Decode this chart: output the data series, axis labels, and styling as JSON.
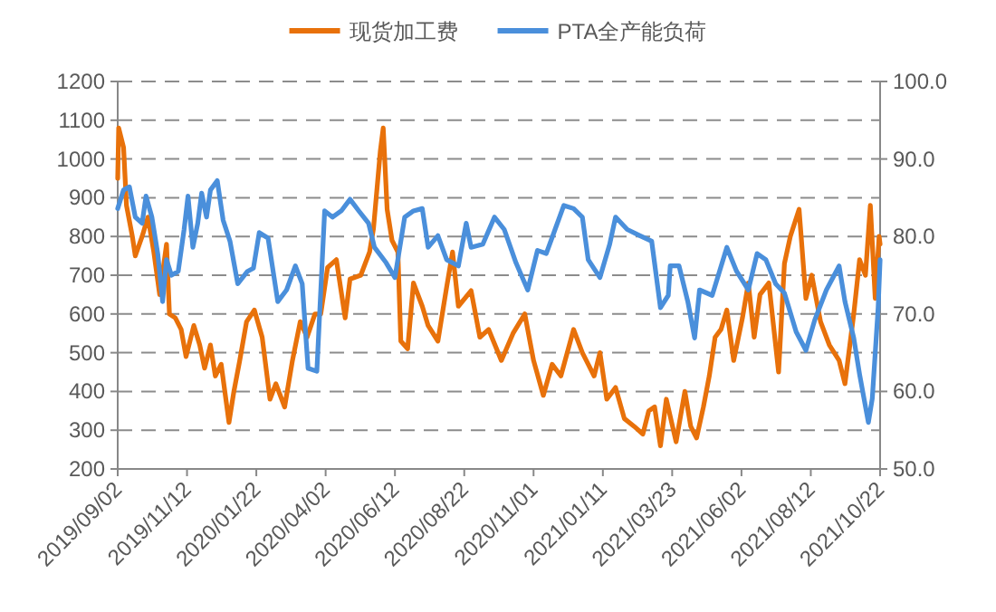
{
  "chart_data": {
    "type": "line",
    "xlim": [
      "2019-09-02",
      "2021-10-22"
    ],
    "xticks": [
      {
        "value": "2019-09-02",
        "label": "2019/09/02"
      },
      {
        "value": "2019-11-12",
        "label": "2019/11/12"
      },
      {
        "value": "2020-01-22",
        "label": "2020/01/22"
      },
      {
        "value": "2020-04-02",
        "label": "2020/04/02"
      },
      {
        "value": "2020-06-12",
        "label": "2020/06/12"
      },
      {
        "value": "2020-08-22",
        "label": "2020/08/22"
      },
      {
        "value": "2020-11-01",
        "label": "2020/11/01"
      },
      {
        "value": "2021-01-11",
        "label": "2021/01/11"
      },
      {
        "value": "2021-03-23",
        "label": "2021/03/23"
      },
      {
        "value": "2021-06-02",
        "label": "2021/06/02"
      },
      {
        "value": "2021-08-12",
        "label": "2021/08/12"
      },
      {
        "value": "2021-10-22",
        "label": "2021/10/22"
      }
    ],
    "ylim": [
      200,
      1200
    ],
    "yticks": [
      200,
      300,
      400,
      500,
      600,
      700,
      800,
      900,
      1000,
      1100,
      1200
    ],
    "y2lim": [
      50,
      100
    ],
    "y2ticks": [
      {
        "value": 50,
        "label": "50.0"
      },
      {
        "value": 60,
        "label": "60.0"
      },
      {
        "value": 70,
        "label": "70.0"
      },
      {
        "value": 80,
        "label": "80.0"
      },
      {
        "value": 90,
        "label": "90.0"
      },
      {
        "value": 100,
        "label": "100.0"
      }
    ],
    "grid": "y",
    "legend": "top",
    "line_style": "solid",
    "series": [
      {
        "name": "现货加工费",
        "color": "#e8710a",
        "x": [
          "2019-09-02",
          "2019-09-03",
          "2019-09-08",
          "2019-09-11",
          "2019-09-17",
          "2019-09-20",
          "2019-09-27",
          "2019-10-03",
          "2019-10-09",
          "2019-10-15",
          "2019-10-22",
          "2019-10-25",
          "2019-10-31",
          "2019-11-06",
          "2019-11-11",
          "2019-11-19",
          "2019-11-25",
          "2019-11-30",
          "2019-12-06",
          "2019-12-11",
          "2019-12-17",
          "2019-12-25",
          "2019-12-30",
          "2020-01-05",
          "2020-01-12",
          "2020-01-20",
          "2020-01-28",
          "2020-02-05",
          "2020-02-11",
          "2020-02-20",
          "2020-02-28",
          "2020-03-07",
          "2020-03-14",
          "2020-03-22",
          "2020-03-28",
          "2020-04-04",
          "2020-04-13",
          "2020-04-22",
          "2020-04-27",
          "2020-05-08",
          "2020-05-17",
          "2020-05-21",
          "2020-05-28",
          "2020-05-31",
          "2020-06-04",
          "2020-06-09",
          "2020-06-15",
          "2020-06-18",
          "2020-06-25",
          "2020-07-01",
          "2020-07-10",
          "2020-07-16",
          "2020-07-26",
          "2020-08-04",
          "2020-08-10",
          "2020-08-16",
          "2020-08-29",
          "2020-09-07",
          "2020-09-16",
          "2020-09-29",
          "2020-10-11",
          "2020-10-23",
          "2020-11-01",
          "2020-11-11",
          "2020-11-20",
          "2020-11-29",
          "2020-12-12",
          "2020-12-21",
          "2020-12-27",
          "2021-01-02",
          "2021-01-08",
          "2021-01-15",
          "2021-01-24",
          "2021-02-02",
          "2021-02-12",
          "2021-02-21",
          "2021-02-27",
          "2021-03-05",
          "2021-03-11",
          "2021-03-17",
          "2021-03-27",
          "2021-04-05",
          "2021-04-11",
          "2021-04-17",
          "2021-04-24",
          "2021-04-30",
          "2021-05-06",
          "2021-05-12",
          "2021-05-18",
          "2021-05-25",
          "2021-06-03",
          "2021-06-09",
          "2021-06-15",
          "2021-06-21",
          "2021-06-30",
          "2021-07-10",
          "2021-07-16",
          "2021-07-22",
          "2021-07-31",
          "2021-08-07",
          "2021-08-13",
          "2021-08-22",
          "2021-08-31",
          "2021-09-10",
          "2021-09-16",
          "2021-09-25",
          "2021-10-01",
          "2021-10-07",
          "2021-10-12",
          "2021-10-17",
          "2021-10-21",
          "2021-10-22"
        ],
        "values": [
          950,
          1080,
          1030,
          880,
          800,
          750,
          800,
          850,
          760,
          650,
          780,
          600,
          590,
          560,
          490,
          570,
          520,
          460,
          520,
          440,
          470,
          320,
          400,
          480,
          580,
          610,
          540,
          380,
          420,
          360,
          480,
          580,
          540,
          600,
          600,
          720,
          740,
          590,
          690,
          700,
          760,
          820,
          1020,
          1080,
          870,
          790,
          760,
          530,
          510,
          680,
          620,
          570,
          530,
          670,
          760,
          620,
          660,
          540,
          560,
          480,
          550,
          600,
          480,
          390,
          470,
          440,
          560,
          500,
          470,
          440,
          500,
          380,
          410,
          330,
          310,
          290,
          350,
          360,
          260,
          380,
          270,
          400,
          310,
          280,
          360,
          440,
          540,
          560,
          610,
          480,
          590,
          680,
          540,
          650,
          680,
          450,
          730,
          800,
          870,
          640,
          700,
          580,
          520,
          480,
          420,
          600,
          740,
          700,
          880,
          640,
          800,
          780
        ]
      },
      {
        "name": "PTA全产能负荷",
        "color": "#4a8fdb",
        "axis": "y2",
        "x": [
          "2019-09-02",
          "2019-09-08",
          "2019-09-14",
          "2019-09-20",
          "2019-09-27",
          "2019-10-01",
          "2019-10-07",
          "2019-10-13",
          "2019-10-18",
          "2019-10-22",
          "2019-10-27",
          "2019-11-03",
          "2019-11-09",
          "2019-11-13",
          "2019-11-18",
          "2019-11-23",
          "2019-11-27",
          "2019-12-02",
          "2019-12-06",
          "2019-12-13",
          "2019-12-19",
          "2019-12-26",
          "2020-01-03",
          "2020-01-13",
          "2020-01-19",
          "2020-01-25",
          "2020-02-03",
          "2020-02-13",
          "2020-02-22",
          "2020-03-02",
          "2020-03-09",
          "2020-03-15",
          "2020-03-24",
          "2020-04-01",
          "2020-04-09",
          "2020-04-18",
          "2020-04-27",
          "2020-05-06",
          "2020-05-16",
          "2020-05-22",
          "2020-06-03",
          "2020-06-12",
          "2020-06-22",
          "2020-07-01",
          "2020-07-10",
          "2020-07-16",
          "2020-07-26",
          "2020-08-04",
          "2020-08-16",
          "2020-08-24",
          "2020-08-29",
          "2020-09-10",
          "2020-09-22",
          "2020-10-02",
          "2020-10-14",
          "2020-10-26",
          "2020-11-05",
          "2020-11-14",
          "2020-11-23",
          "2020-12-02",
          "2020-12-12",
          "2020-12-21",
          "2020-12-27",
          "2021-01-08",
          "2021-01-18",
          "2021-01-24",
          "2021-02-05",
          "2021-02-18",
          "2021-03-02",
          "2021-03-11",
          "2021-03-19",
          "2021-03-21",
          "2021-03-30",
          "2021-04-08",
          "2021-04-15",
          "2021-04-20",
          "2021-05-03",
          "2021-05-18",
          "2021-05-28",
          "2021-06-09",
          "2021-06-18",
          "2021-06-27",
          "2021-07-07",
          "2021-07-16",
          "2021-07-28",
          "2021-08-07",
          "2021-08-16",
          "2021-08-28",
          "2021-09-10",
          "2021-09-16",
          "2021-09-25",
          "2021-10-01",
          "2021-10-10",
          "2021-10-14",
          "2021-10-20",
          "2021-10-22"
        ],
        "values": [
          83.6,
          86.0,
          86.4,
          82.5,
          81.7,
          85.2,
          82.5,
          77.8,
          71.6,
          77.0,
          75.0,
          75.5,
          80.9,
          85.2,
          78.6,
          81.7,
          85.6,
          82.5,
          86.0,
          87.2,
          82.1,
          79.4,
          73.9,
          75.5,
          75.9,
          80.5,
          79.8,
          71.6,
          73.1,
          76.2,
          73.9,
          63.0,
          62.6,
          83.3,
          82.5,
          83.3,
          84.8,
          83.3,
          81.7,
          78.6,
          76.6,
          74.7,
          82.5,
          83.3,
          83.6,
          78.6,
          80.1,
          77.0,
          76.2,
          81.7,
          78.6,
          79.0,
          82.5,
          80.9,
          76.6,
          73.1,
          78.2,
          77.8,
          80.9,
          84.0,
          83.6,
          82.5,
          77.0,
          74.7,
          79.0,
          82.5,
          80.9,
          80.1,
          79.4,
          70.8,
          72.4,
          76.2,
          76.2,
          71.6,
          66.9,
          73.1,
          72.4,
          78.6,
          75.5,
          73.1,
          77.8,
          77.0,
          73.9,
          72.7,
          67.7,
          65.3,
          69.2,
          73.1,
          76.2,
          71.6,
          66.9,
          62.2,
          56.0,
          59.1,
          70.8,
          77.0
        ]
      }
    ]
  }
}
